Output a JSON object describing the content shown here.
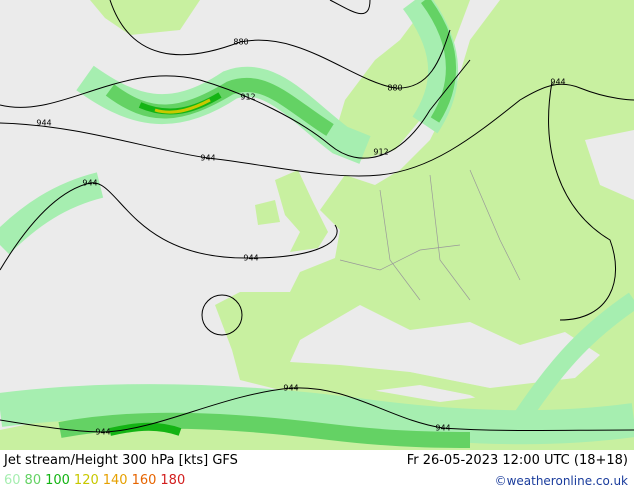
{
  "header": {
    "title": "Jet stream/Height 300 hPa [kts] GFS",
    "datetime": "Fr 26-05-2023 12:00 UTC (18+18)"
  },
  "legend": {
    "items": [
      {
        "label": "60",
        "color": "#a6eeb0"
      },
      {
        "label": "80",
        "color": "#64d264"
      },
      {
        "label": "100",
        "color": "#14b414"
      },
      {
        "label": "120",
        "color": "#c8c800"
      },
      {
        "label": "140",
        "color": "#e6a000"
      },
      {
        "label": "160",
        "color": "#e66400"
      },
      {
        "label": "180",
        "color": "#d21e1e"
      }
    ]
  },
  "credit": "©weatheronline.co.uk",
  "contour_labels": [
    "880",
    "880",
    "912",
    "912",
    "944",
    "944",
    "944",
    "944",
    "944",
    "944",
    "944",
    "944"
  ]
}
